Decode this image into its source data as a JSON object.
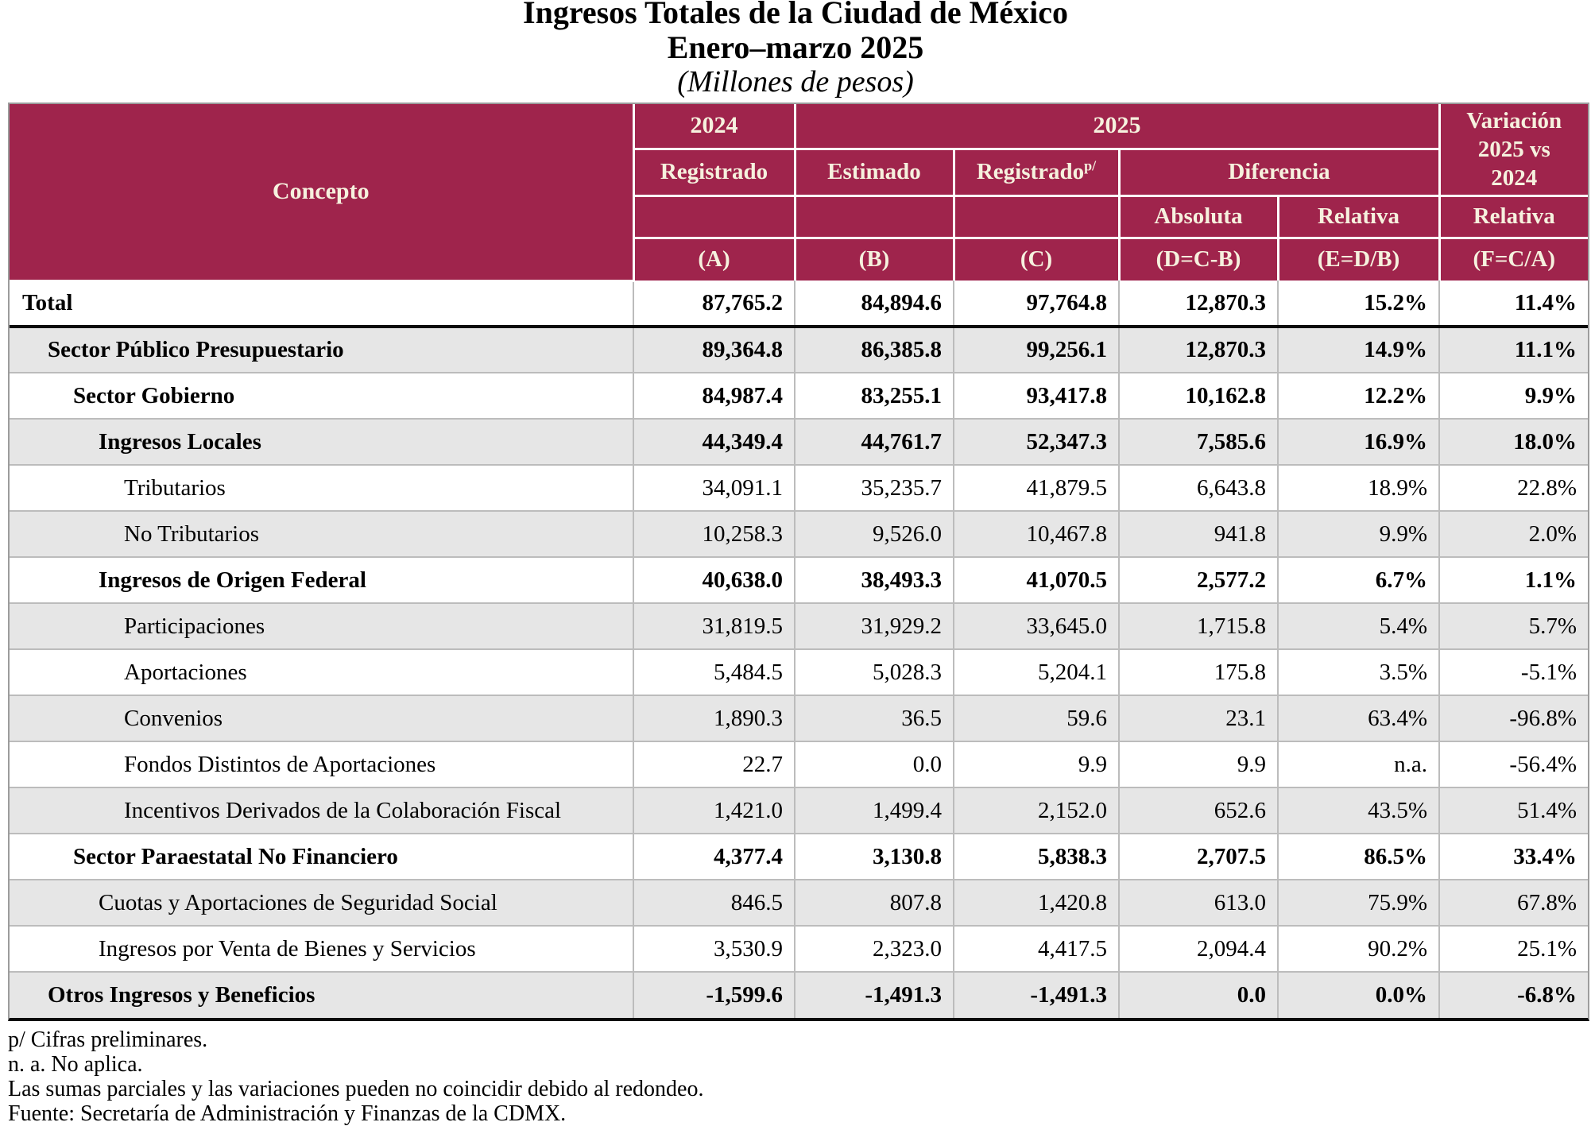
{
  "title": {
    "line1": "Ingresos Totales de la Ciudad de México",
    "line2": "Enero–marzo 2025",
    "line3": "(Millones de pesos)"
  },
  "colors": {
    "header_bg": "#9f244c",
    "header_text": "#f6f1de",
    "alt_row_bg": "#e6e6e6",
    "grid_line": "#bcbcbc",
    "thick_rule": "#0a0a0a"
  },
  "table": {
    "columns": {
      "concepto": "Concepto",
      "year_2024": "2024",
      "year_2025": "2025",
      "variacion": "Variación 2025 vs 2024",
      "registrado_a": "Registrado",
      "estimado": "Estimado",
      "registrado_c": "Registrado",
      "registrado_c_sup": "p/",
      "diferencia": "Diferencia",
      "absoluta": "Absoluta",
      "relativa_e": "Relativa",
      "relativa_f": "Relativa",
      "key_a": "(A)",
      "key_b": "(B)",
      "key_c": "(C)",
      "key_d": "(D=C-B)",
      "key_e": "(E=D/B)",
      "key_f": "(F=C/A)"
    },
    "rows": [
      {
        "label": "Total",
        "indent": 0,
        "bold": true,
        "values": [
          "87,765.2",
          "84,894.6",
          "97,764.8",
          "12,870.3",
          "15.2%",
          "11.4%"
        ]
      },
      {
        "label": "Sector Público Presupuestario",
        "indent": 1,
        "bold": true,
        "values": [
          "89,364.8",
          "86,385.8",
          "99,256.1",
          "12,870.3",
          "14.9%",
          "11.1%"
        ]
      },
      {
        "label": "Sector Gobierno",
        "indent": 2,
        "bold": true,
        "values": [
          "84,987.4",
          "83,255.1",
          "93,417.8",
          "10,162.8",
          "12.2%",
          "9.9%"
        ]
      },
      {
        "label": "Ingresos Locales",
        "indent": 3,
        "bold": true,
        "values": [
          "44,349.4",
          "44,761.7",
          "52,347.3",
          "7,585.6",
          "16.9%",
          "18.0%"
        ]
      },
      {
        "label": "Tributarios",
        "indent": 4,
        "bold": false,
        "values": [
          "34,091.1",
          "35,235.7",
          "41,879.5",
          "6,643.8",
          "18.9%",
          "22.8%"
        ]
      },
      {
        "label": "No Tributarios",
        "indent": 4,
        "bold": false,
        "values": [
          "10,258.3",
          "9,526.0",
          "10,467.8",
          "941.8",
          "9.9%",
          "2.0%"
        ]
      },
      {
        "label": "Ingresos de Origen Federal",
        "indent": 3,
        "bold": true,
        "values": [
          "40,638.0",
          "38,493.3",
          "41,070.5",
          "2,577.2",
          "6.7%",
          "1.1%"
        ]
      },
      {
        "label": "Participaciones",
        "indent": 4,
        "bold": false,
        "values": [
          "31,819.5",
          "31,929.2",
          "33,645.0",
          "1,715.8",
          "5.4%",
          "5.7%"
        ]
      },
      {
        "label": "Aportaciones",
        "indent": 4,
        "bold": false,
        "values": [
          "5,484.5",
          "5,028.3",
          "5,204.1",
          "175.8",
          "3.5%",
          "-5.1%"
        ]
      },
      {
        "label": "Convenios",
        "indent": 4,
        "bold": false,
        "values": [
          "1,890.3",
          "36.5",
          "59.6",
          "23.1",
          "63.4%",
          "-96.8%"
        ]
      },
      {
        "label": "Fondos Distintos de Aportaciones",
        "indent": 4,
        "bold": false,
        "values": [
          "22.7",
          "0.0",
          "9.9",
          "9.9",
          "n.a.",
          "-56.4%"
        ]
      },
      {
        "label": "Incentivos Derivados de la Colaboración Fiscal",
        "indent": 4,
        "bold": false,
        "values": [
          "1,421.0",
          "1,499.4",
          "2,152.0",
          "652.6",
          "43.5%",
          "51.4%"
        ]
      },
      {
        "label": "Sector Paraestatal No Financiero",
        "indent": 2,
        "bold": true,
        "values": [
          "4,377.4",
          "3,130.8",
          "5,838.3",
          "2,707.5",
          "86.5%",
          "33.4%"
        ]
      },
      {
        "label": "Cuotas y Aportaciones de Seguridad Social",
        "indent": 3,
        "bold": false,
        "values": [
          "846.5",
          "807.8",
          "1,420.8",
          "613.0",
          "75.9%",
          "67.8%"
        ]
      },
      {
        "label": "Ingresos por Venta de Bienes y Servicios",
        "indent": 3,
        "bold": false,
        "values": [
          "3,530.9",
          "2,323.0",
          "4,417.5",
          "2,094.4",
          "90.2%",
          "25.1%"
        ]
      },
      {
        "label": "Otros Ingresos y Beneficios",
        "indent": 1,
        "bold": true,
        "values": [
          "-1,599.6",
          "-1,491.3",
          "-1,491.3",
          "0.0",
          "0.0%",
          "-6.8%"
        ]
      }
    ]
  },
  "footnotes": [
    "p/ Cifras preliminares.",
    "n. a. No aplica.",
    "Las sumas parciales y las variaciones pueden no coincidir debido al redondeo.",
    "Fuente: Secretaría de Administración y Finanzas de la CDMX."
  ]
}
